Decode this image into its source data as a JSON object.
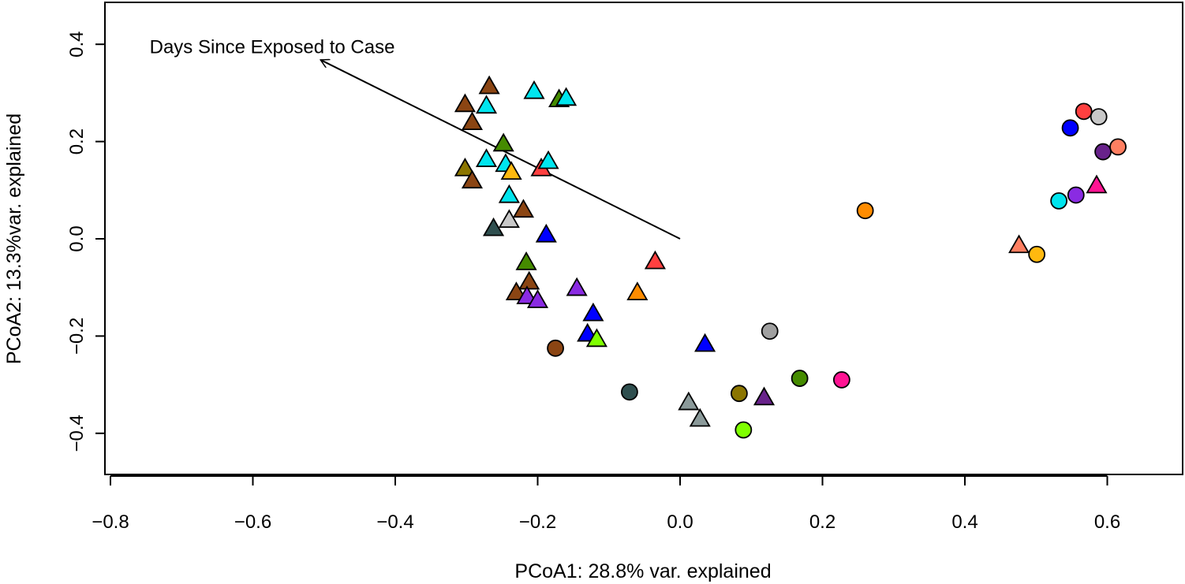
{
  "chart_data": {
    "type": "scatter",
    "title": "",
    "xlabel": "PCoA1: 28.8% var. explained",
    "ylabel": "PCoA2: 13.3%var. explained",
    "xlim": [
      -0.8,
      0.7
    ],
    "ylim": [
      -0.48,
      0.48
    ],
    "x_ticks": [
      -0.8,
      -0.6,
      -0.4,
      -0.2,
      0.0,
      0.2,
      0.4,
      0.6
    ],
    "x_tick_labels": [
      "−0.8",
      "−0.6",
      "−0.4",
      "−0.2",
      "0.0",
      "0.2",
      "0.4",
      "0.6"
    ],
    "y_ticks": [
      -0.4,
      -0.2,
      0.0,
      0.2,
      0.4
    ],
    "y_tick_labels": [
      "−0.4",
      "−0.2",
      "0.0",
      "0.2",
      "0.4"
    ],
    "grid": false,
    "arrow": {
      "label": "Days Since Exposed to Case",
      "from": [
        0.0,
        0.0
      ],
      "to": [
        -0.505,
        0.368
      ],
      "label_anchor": [
        -0.745,
        0.395
      ]
    },
    "points": [
      {
        "x": -0.268,
        "y": 0.312,
        "shape": "triangle",
        "color": "#8B4513"
      },
      {
        "x": -0.302,
        "y": 0.275,
        "shape": "triangle",
        "color": "#8B4513"
      },
      {
        "x": -0.272,
        "y": 0.272,
        "shape": "triangle",
        "color": "#00E5EE"
      },
      {
        "x": -0.292,
        "y": 0.238,
        "shape": "triangle",
        "color": "#8B4513"
      },
      {
        "x": -0.205,
        "y": 0.302,
        "shape": "triangle",
        "color": "#00E5EE"
      },
      {
        "x": -0.17,
        "y": 0.285,
        "shape": "triangle",
        "color": "#458B00"
      },
      {
        "x": -0.16,
        "y": 0.288,
        "shape": "triangle",
        "color": "#00E5EE"
      },
      {
        "x": -0.248,
        "y": 0.194,
        "shape": "triangle",
        "color": "#458B00"
      },
      {
        "x": -0.272,
        "y": 0.162,
        "shape": "triangle",
        "color": "#00E5EE"
      },
      {
        "x": -0.245,
        "y": 0.152,
        "shape": "triangle",
        "color": "#00E5EE"
      },
      {
        "x": -0.302,
        "y": 0.143,
        "shape": "triangle",
        "color": "#8B7500"
      },
      {
        "x": -0.237,
        "y": 0.136,
        "shape": "triangle",
        "color": "#FFB90F"
      },
      {
        "x": -0.195,
        "y": 0.143,
        "shape": "triangle",
        "color": "#FF4040"
      },
      {
        "x": -0.185,
        "y": 0.158,
        "shape": "triangle",
        "color": "#00E5EE"
      },
      {
        "x": -0.292,
        "y": 0.118,
        "shape": "triangle",
        "color": "#8B4513"
      },
      {
        "x": -0.24,
        "y": 0.088,
        "shape": "triangle",
        "color": "#00E5EE"
      },
      {
        "x": -0.22,
        "y": 0.058,
        "shape": "triangle",
        "color": "#8B4513"
      },
      {
        "x": -0.24,
        "y": 0.037,
        "shape": "triangle",
        "color": "#C8C8C8"
      },
      {
        "x": -0.262,
        "y": 0.02,
        "shape": "triangle",
        "color": "#2F4F4F"
      },
      {
        "x": -0.188,
        "y": 0.007,
        "shape": "triangle",
        "color": "#0000FF"
      },
      {
        "x": -0.216,
        "y": -0.05,
        "shape": "triangle",
        "color": "#458B00"
      },
      {
        "x": -0.035,
        "y": -0.048,
        "shape": "triangle",
        "color": "#FF4040"
      },
      {
        "x": -0.212,
        "y": -0.09,
        "shape": "triangle",
        "color": "#8B4513"
      },
      {
        "x": -0.145,
        "y": -0.103,
        "shape": "triangle",
        "color": "#8A2BE2"
      },
      {
        "x": -0.06,
        "y": -0.112,
        "shape": "triangle",
        "color": "#FF8C00"
      },
      {
        "x": -0.23,
        "y": -0.112,
        "shape": "triangle",
        "color": "#8B4513"
      },
      {
        "x": -0.215,
        "y": -0.12,
        "shape": "triangle",
        "color": "#8A2BE2"
      },
      {
        "x": -0.2,
        "y": -0.128,
        "shape": "triangle",
        "color": "#8A2BE2"
      },
      {
        "x": -0.122,
        "y": -0.155,
        "shape": "triangle",
        "color": "#0000FF"
      },
      {
        "x": -0.13,
        "y": -0.197,
        "shape": "triangle",
        "color": "#0000FF"
      },
      {
        "x": -0.117,
        "y": -0.208,
        "shape": "triangle",
        "color": "#7FFF00"
      },
      {
        "x": 0.035,
        "y": -0.218,
        "shape": "triangle",
        "color": "#0000FF"
      },
      {
        "x": 0.012,
        "y": -0.338,
        "shape": "triangle",
        "color": "#8B9A9A"
      },
      {
        "x": 0.028,
        "y": -0.372,
        "shape": "triangle",
        "color": "#8B9A9A"
      },
      {
        "x": 0.118,
        "y": -0.328,
        "shape": "triangle",
        "color": "#68228B"
      },
      {
        "x": 0.476,
        "y": -0.015,
        "shape": "triangle",
        "color": "#FF7F61"
      },
      {
        "x": 0.585,
        "y": 0.108,
        "shape": "triangle",
        "color": "#FF1493"
      },
      {
        "x": -0.175,
        "y": -0.225,
        "shape": "circle",
        "color": "#8B4513"
      },
      {
        "x": -0.071,
        "y": -0.315,
        "shape": "circle",
        "color": "#2F4F4F"
      },
      {
        "x": 0.126,
        "y": -0.19,
        "shape": "circle",
        "color": "#A0A0A0"
      },
      {
        "x": 0.083,
        "y": -0.318,
        "shape": "circle",
        "color": "#8B7500"
      },
      {
        "x": 0.089,
        "y": -0.393,
        "shape": "circle",
        "color": "#7FFF00"
      },
      {
        "x": 0.168,
        "y": -0.287,
        "shape": "circle",
        "color": "#458B00"
      },
      {
        "x": 0.227,
        "y": -0.29,
        "shape": "circle",
        "color": "#FF1493"
      },
      {
        "x": 0.26,
        "y": 0.058,
        "shape": "circle",
        "color": "#FF8C00"
      },
      {
        "x": 0.501,
        "y": -0.032,
        "shape": "circle",
        "color": "#FFB90F"
      },
      {
        "x": 0.532,
        "y": 0.078,
        "shape": "circle",
        "color": "#00E5EE"
      },
      {
        "x": 0.556,
        "y": 0.09,
        "shape": "circle",
        "color": "#8A2BE2"
      },
      {
        "x": 0.548,
        "y": 0.228,
        "shape": "circle",
        "color": "#0000FF"
      },
      {
        "x": 0.567,
        "y": 0.262,
        "shape": "circle",
        "color": "#FF4040"
      },
      {
        "x": 0.588,
        "y": 0.251,
        "shape": "circle",
        "color": "#C8C8C8"
      },
      {
        "x": 0.594,
        "y": 0.179,
        "shape": "circle",
        "color": "#68228B"
      },
      {
        "x": 0.615,
        "y": 0.189,
        "shape": "circle",
        "color": "#FF7F61"
      }
    ]
  }
}
